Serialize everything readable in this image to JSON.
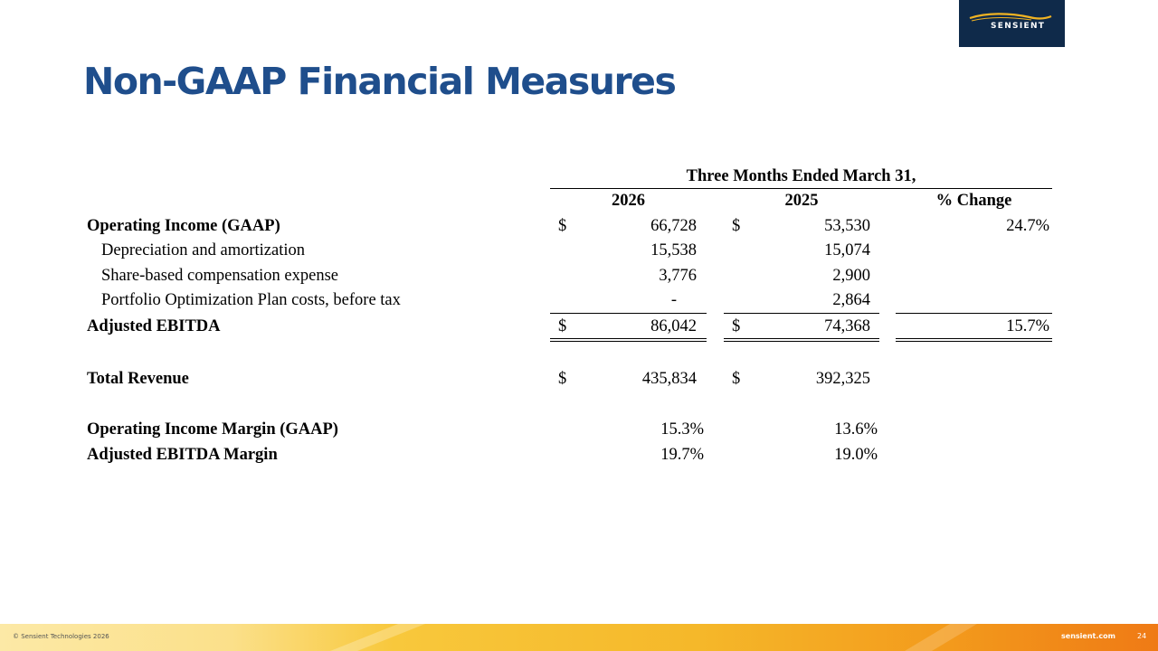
{
  "slide": {
    "title": "Non-GAAP Financial Measures",
    "logo_text": "SENSIENT",
    "colors": {
      "title": "#1f4e8c",
      "logo_bg": "#0f2a4a",
      "logo_swoosh": "#f0b323"
    }
  },
  "table": {
    "period_header": "Three Months Ended March 31,",
    "columns": [
      "2026",
      "2025",
      "% Change"
    ],
    "rows": [
      {
        "label": "Operating Income (GAAP)",
        "cur": "$",
        "v2026": "66,728",
        "cur2": "$",
        "v2025": "53,530",
        "change": "24.7%"
      },
      {
        "label": "Depreciation and amortization",
        "v2026": "15,538",
        "v2025": "15,074"
      },
      {
        "label": "Share-based compensation expense",
        "v2026": "3,776",
        "v2025": "2,900"
      },
      {
        "label": "Portfolio Optimization Plan costs, before tax",
        "v2026": "-",
        "v2025": "2,864"
      },
      {
        "label": "Adjusted EBITDA",
        "cur": "$",
        "v2026": "86,042",
        "cur2": "$",
        "v2025": "74,368",
        "change": "15.7%"
      },
      {
        "label": "Total Revenue",
        "cur": "$",
        "v2026": "435,834",
        "cur2": "$",
        "v2025": "392,325"
      },
      {
        "label": "Operating Income Margin (GAAP)",
        "v2026": "15.3%",
        "v2025": "13.6%"
      },
      {
        "label": "Adjusted EBITDA Margin",
        "v2026": "19.7%",
        "v2025": "19.0%"
      }
    ]
  },
  "footer": {
    "copyright": "© Sensient Technologies 2026",
    "site": "sensient.com",
    "page": "24"
  }
}
